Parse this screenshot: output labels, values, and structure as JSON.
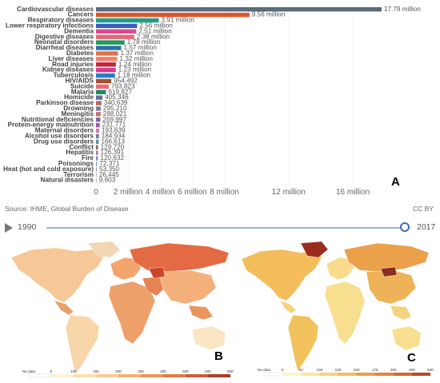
{
  "chart_data": [
    {
      "type": "bar",
      "orientation": "horizontal",
      "panel": "A",
      "categories": [
        "Cardiovascular diseases",
        "Cancers",
        "Respiratory diseases",
        "Lower respiratory infections",
        "Dementia",
        "Digestive diseases",
        "Neonatal disorders",
        "Diarrheal diseases",
        "Diabetes",
        "Liver diseases",
        "Road injuries",
        "Kidney diseases",
        "Tuberculosis",
        "HIV/AIDS",
        "Suicide",
        "Malaria",
        "Homicide",
        "Parkinson disease",
        "Drowning",
        "Meningitis",
        "Nutritional deficiencies",
        "Protein-energy malnutrition",
        "Maternal disorders",
        "Alcohol use disorders",
        "Drug use disorders",
        "Conflict",
        "Hepatitis",
        "Fire",
        "Poisonings",
        "Heat (hot and cold exposure)",
        "Terrorism",
        "Natural disasters"
      ],
      "values": [
        17790000,
        9560000,
        3910000,
        2560000,
        2510000,
        2380000,
        1780000,
        1570000,
        1370000,
        1320000,
        1240000,
        1230000,
        1180000,
        954492,
        793823,
        619827,
        405346,
        340639,
        295210,
        288021,
        269997,
        231771,
        193639,
        184934,
        166613,
        129720,
        126391,
        120632,
        72371,
        53350,
        26445,
        9603
      ],
      "value_labels": [
        "17.79 million",
        "9.56 million",
        "3.91 million",
        "2.56 million",
        "2.51 million",
        "2.38 million",
        "1.78 million",
        "1.57 million",
        "1.37 million",
        "1.32 million",
        "1.24 million",
        "1.23 million",
        "1.18 million",
        "954,492",
        "793,823",
        "619,827",
        "405,346",
        "340,639",
        "295,210",
        "288,021",
        "269,997",
        "231,771",
        "193,639",
        "184,934",
        "166,613",
        "129,720",
        "126,391",
        "120,632",
        "72,371",
        "53,350",
        "26,445",
        "9,603"
      ],
      "colors": [
        "#5a6b7f",
        "#e0552b",
        "#1f9e89",
        "#3a5cbf",
        "#d94a8c",
        "#e8657a",
        "#1e9a5a",
        "#2f6fa8",
        "#e0734a",
        "#f47f6e",
        "#c2283c",
        "#d73a93",
        "#2a7cc1",
        "#a0522d",
        "#e86a7a",
        "#1a8a6a",
        "#6a6a9a",
        "#b76b5a",
        "#7a7fa0",
        "#c07070",
        "#7b6bb0",
        "#9e5aa8",
        "#c67f9e",
        "#6e7ea8",
        "#5a8fb0",
        "#8a6a50",
        "#a07aa0",
        "#7f8fb0",
        "#8aa0b8",
        "#9090a8",
        "#a0a0b8",
        "#b0b0c0"
      ],
      "x_ticks": [
        "0",
        "2 million",
        "4 million",
        "6 million",
        "8 million",
        "12 million",
        "16 million"
      ],
      "x_tick_values": [
        0,
        2000000,
        4000000,
        6000000,
        8000000,
        12000000,
        16000000
      ],
      "xlim": [
        0,
        17790000
      ],
      "xlabel": "",
      "ylabel": "",
      "title": "",
      "grid": true,
      "letter": "A"
    },
    {
      "type": "choropleth",
      "panel": "B",
      "letter": "B",
      "legend_ticks": [
        "No data",
        "0",
        "100",
        "150",
        "200",
        "300",
        "400",
        "500",
        "600",
        "800"
      ],
      "legend_colors": [
        "#ffffff",
        "#fdf1d6",
        "#fbe1b0",
        "#f8cc8e",
        "#f3b271",
        "#ec9557",
        "#e07a45",
        "#cd5d38",
        "#a8402a",
        "#7a2a1e"
      ]
    },
    {
      "type": "choropleth",
      "panel": "C",
      "letter": "C",
      "legend_ticks": [
        "No data",
        "0",
        "50",
        "100",
        "125",
        "150",
        "175",
        "200",
        "250",
        "500"
      ],
      "legend_colors": [
        "#ffffff",
        "#fff4c8",
        "#fbe6a3",
        "#f6d17e",
        "#f2bc60",
        "#eba04a",
        "#e2853c",
        "#d36832",
        "#b84a29",
        "#8a2f20"
      ]
    }
  ],
  "source": "Source: IHME, Global Burden of Disease",
  "license": "CC BY",
  "timeline": {
    "start_year": "1990",
    "end_year": "2017",
    "position": 1.0
  },
  "colors": {
    "ocean": "#ffffff",
    "nodata": "#e6e6e6",
    "track": "#9ab3d5",
    "knob": "#3b6eb5"
  }
}
